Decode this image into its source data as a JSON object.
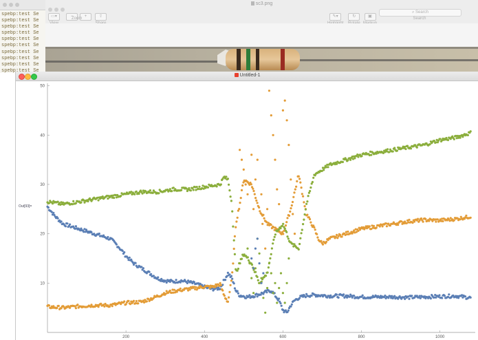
{
  "terminal": {
    "lines": [
      "spebp:test Se",
      "spebp:test Se",
      "spebp:test Se",
      "spebp:test Se",
      "spebp:test Se",
      "spebp:test Se",
      "spebp:test Se",
      "spebp:test Se",
      "spebp:test Se",
      "spebp:test Se"
    ]
  },
  "preview": {
    "title": "sc3.png",
    "toolbar": {
      "view": "View",
      "zoom": "Zoom",
      "share": "Share",
      "highlight": "Highlight",
      "rotate": "Rotate",
      "markup": "Markup"
    },
    "search": {
      "placeholder": "Search",
      "label": "Search"
    }
  },
  "window": {
    "title": "Untitled-1"
  },
  "chart_data": {
    "type": "scatter",
    "ylabel": "Out[93]=",
    "xlim": [
      0,
      1090
    ],
    "ylim": [
      0,
      50.5
    ],
    "x_ticks": [
      200,
      400,
      600,
      800,
      1000
    ],
    "y_ticks": [
      10,
      20,
      30,
      40,
      50
    ],
    "colors": {
      "blue": "#5b7fb5",
      "orange": "#e39c37",
      "green": "#8bae3c"
    },
    "series": [
      {
        "key": "blue",
        "x": [
          0,
          20,
          40,
          60,
          80,
          100,
          120,
          140,
          160,
          180,
          200,
          220,
          240,
          260,
          280,
          300,
          320,
          340,
          360,
          380,
          400,
          420,
          440,
          450,
          460,
          470,
          480,
          490,
          510,
          530,
          550,
          570,
          590,
          600,
          610,
          620,
          630,
          640,
          660,
          680,
          700,
          720,
          740,
          760,
          780,
          800,
          840,
          880,
          920,
          960,
          1000,
          1040,
          1080
        ],
        "y": [
          25.5,
          23.5,
          22,
          21.5,
          21,
          20.5,
          20,
          19.5,
          19,
          17.5,
          15.5,
          14,
          13,
          12,
          11,
          10.5,
          10.3,
          10.5,
          10.2,
          9.8,
          9.2,
          8.8,
          9,
          10.5,
          12,
          11,
          8.5,
          7.5,
          7.2,
          7.5,
          8,
          8.5,
          6.5,
          4.5,
          4,
          5.5,
          6.5,
          7,
          7.5,
          7.6,
          7.5,
          7.4,
          7.4,
          7.4,
          7.3,
          7.2,
          7.2,
          7.2,
          7.1,
          7.2,
          7.3,
          7.4,
          7
        ]
      },
      {
        "key": "orange",
        "x": [
          0,
          40,
          80,
          120,
          160,
          200,
          240,
          270,
          300,
          330,
          360,
          380,
          400,
          420,
          440,
          450,
          460,
          470,
          480,
          490,
          500,
          520,
          540,
          560,
          580,
          600,
          620,
          640,
          660,
          680,
          690,
          700,
          720,
          760,
          800,
          840,
          880,
          920,
          960,
          1000,
          1040,
          1080
        ],
        "y": [
          5.2,
          5,
          5.3,
          5.5,
          5.5,
          6,
          6.2,
          7,
          8,
          8.5,
          8.8,
          9,
          9.3,
          9.2,
          9.8,
          7.5,
          6.2,
          11,
          22,
          26,
          31,
          30,
          25,
          22,
          21,
          20,
          25,
          32,
          24,
          21,
          19,
          18,
          19,
          20,
          21,
          21.5,
          22,
          22.5,
          22.8,
          22.7,
          23,
          23.5
        ]
      },
      {
        "key": "green",
        "x": [
          0,
          40,
          80,
          120,
          160,
          200,
          240,
          280,
          320,
          360,
          400,
          440,
          450,
          460,
          470,
          480,
          490,
          500,
          520,
          540,
          560,
          580,
          600,
          620,
          640,
          660,
          680,
          700,
          720,
          760,
          800,
          840,
          880,
          920,
          960,
          1000,
          1040,
          1080
        ],
        "y": [
          26.5,
          26,
          26.5,
          27,
          27.5,
          28,
          28.5,
          28.5,
          29,
          29,
          29.5,
          30,
          31.5,
          31,
          26,
          12,
          14,
          16,
          14,
          10,
          12,
          20,
          22,
          18,
          17,
          26,
          32,
          33,
          34,
          35,
          36,
          36.5,
          37,
          37.5,
          38,
          39,
          39.5,
          40.5
        ]
      }
    ],
    "scatter_orange": {
      "x": [
        490,
        495,
        500,
        505,
        510,
        520,
        525,
        530,
        535,
        545,
        548,
        555,
        560,
        565,
        570,
        575,
        580,
        585,
        590,
        600,
        605,
        610,
        615,
        620,
        625,
        630
      ],
      "y": [
        37,
        35,
        33,
        30,
        28,
        36,
        25,
        31,
        35,
        28,
        22,
        17,
        25,
        49,
        44,
        40,
        35,
        29,
        26,
        45,
        47,
        43,
        38,
        31,
        24,
        20
      ]
    },
    "scatter_green": {
      "x": [
        510,
        515,
        520,
        525,
        530,
        535,
        540,
        545,
        550,
        555,
        560,
        565,
        570,
        575,
        580,
        585,
        590,
        595,
        600,
        605,
        610,
        615
      ],
      "y": [
        17,
        14,
        11,
        8,
        13,
        19,
        16,
        11,
        7,
        4,
        9,
        14,
        12,
        8,
        10,
        6,
        9,
        12,
        8,
        6,
        10,
        15
      ]
    },
    "scatter_blue": {
      "x": [
        520,
        525,
        530,
        535,
        540,
        545,
        550
      ],
      "y": [
        15,
        13,
        17,
        19,
        14,
        10,
        12
      ]
    }
  }
}
